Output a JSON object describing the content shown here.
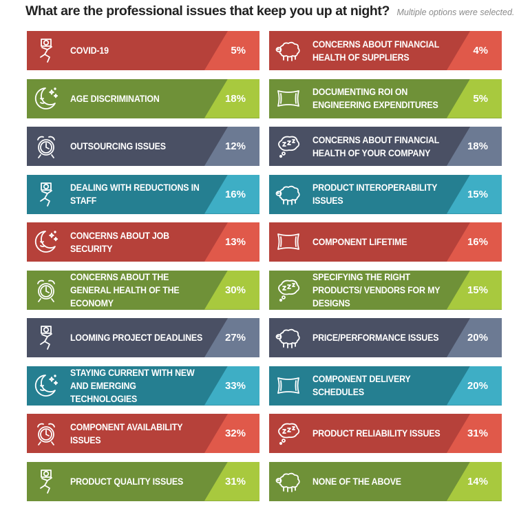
{
  "title": "What are the professional issues that keep you up at night?",
  "subtitle": "Multiple options were selected.",
  "theme_colors": {
    "red": {
      "main": "#b6413a",
      "accent": "#e0594a"
    },
    "green": {
      "main": "#6f9138",
      "accent": "#a8c93e"
    },
    "slate": {
      "main": "#4a5064",
      "accent": "#6c7a93"
    },
    "teal": {
      "main": "#257f91",
      "accent": "#3eaec5"
    }
  },
  "chart_data": {
    "type": "table",
    "value_unit": "%",
    "items": [
      {
        "label": "COVID-19",
        "value": 5,
        "color": "red",
        "icon": "person-in-bed-icon",
        "column": "left"
      },
      {
        "label": "AGE DISCRIMINATION",
        "value": 18,
        "color": "green",
        "icon": "moon-stars-icon",
        "column": "left"
      },
      {
        "label": "OUTSOURCING ISSUES",
        "value": 12,
        "color": "slate",
        "icon": "alarm-clock-icon",
        "column": "left"
      },
      {
        "label": "DEALING WITH REDUCTIONS IN STAFF",
        "value": 16,
        "color": "teal",
        "icon": "person-in-bed-icon",
        "column": "left"
      },
      {
        "label": "CONCERNS ABOUT JOB SECURITY",
        "value": 13,
        "color": "red",
        "icon": "moon-stars-icon",
        "column": "left"
      },
      {
        "label": "CONCERNS ABOUT THE GENERAL HEALTH OF THE ECONOMY",
        "value": 30,
        "color": "green",
        "icon": "alarm-clock-icon",
        "column": "left"
      },
      {
        "label": "LOOMING PROJECT DEADLINES",
        "value": 27,
        "color": "slate",
        "icon": "person-in-bed-icon",
        "column": "left"
      },
      {
        "label": "STAYING CURRENT WITH NEW AND EMERGING TECHNOLOGIES",
        "value": 33,
        "color": "teal",
        "icon": "moon-stars-icon",
        "column": "left"
      },
      {
        "label": "COMPONENT AVAILABILITY ISSUES",
        "value": 32,
        "color": "red",
        "icon": "alarm-clock-icon",
        "column": "left"
      },
      {
        "label": "PRODUCT QUALITY ISSUES",
        "value": 31,
        "color": "green",
        "icon": "person-in-bed-icon",
        "column": "left"
      },
      {
        "label": "CONCERNS ABOUT FINANCIAL HEALTH OF SUPPLIERS",
        "value": 4,
        "color": "red",
        "icon": "sheep-icon",
        "column": "right"
      },
      {
        "label": "DOCUMENTING ROI ON ENGINEERING EXPENDITURES",
        "value": 5,
        "color": "green",
        "icon": "pillow-icon",
        "column": "right"
      },
      {
        "label": "CONCERNS ABOUT FINANCIAL HEALTH OF YOUR COMPANY",
        "value": 18,
        "color": "slate",
        "icon": "zzz-bubble-icon",
        "column": "right"
      },
      {
        "label": "PRODUCT INTEROPERABILITY ISSUES",
        "value": 15,
        "color": "teal",
        "icon": "sheep-icon",
        "column": "right"
      },
      {
        "label": "COMPONENT LIFETIME",
        "value": 16,
        "color": "red",
        "icon": "pillow-icon",
        "column": "right"
      },
      {
        "label": "SPECIFYING THE RIGHT PRODUCTS/ VENDORS FOR MY DESIGNS",
        "value": 15,
        "color": "green",
        "icon": "zzz-bubble-icon",
        "column": "right"
      },
      {
        "label": "PRICE/PERFORMANCE ISSUES",
        "value": 20,
        "color": "slate",
        "icon": "sheep-icon",
        "column": "right"
      },
      {
        "label": "COMPONENT DELIVERY SCHEDULES",
        "value": 20,
        "color": "teal",
        "icon": "pillow-icon",
        "column": "right"
      },
      {
        "label": "PRODUCT RELIABILITY ISSUES",
        "value": 31,
        "color": "red",
        "icon": "zzz-bubble-icon",
        "column": "right"
      },
      {
        "label": "NONE OF THE ABOVE",
        "value": 14,
        "color": "green",
        "icon": "sheep-icon",
        "column": "right"
      }
    ]
  }
}
